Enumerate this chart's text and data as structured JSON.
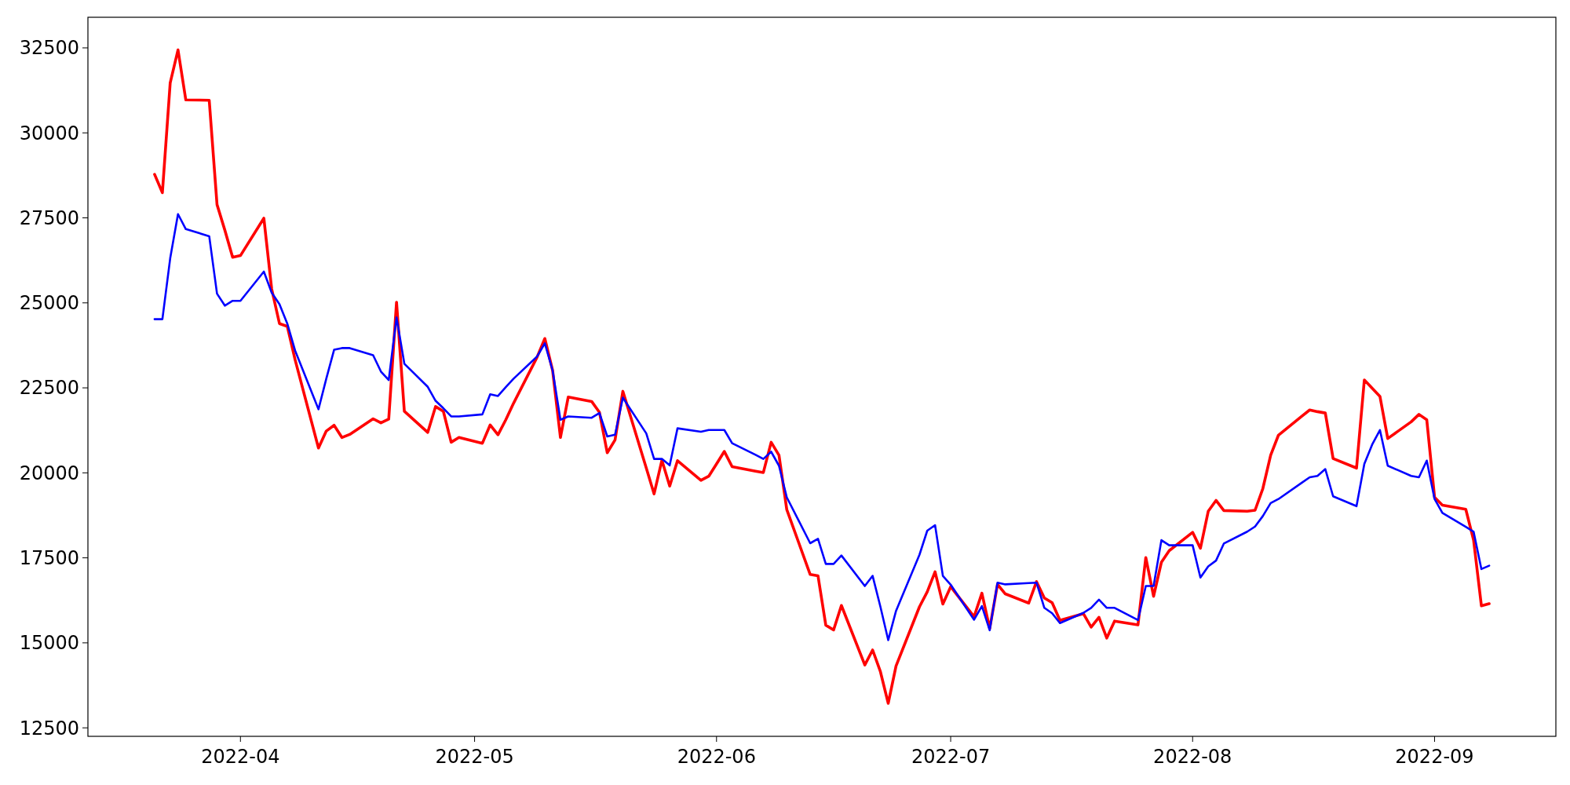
{
  "chart_data": {
    "type": "line",
    "x": [
      "2022-03-21",
      "2022-03-22",
      "2022-03-23",
      "2022-03-24",
      "2022-03-25",
      "2022-03-28",
      "2022-03-29",
      "2022-03-30",
      "2022-03-31",
      "2022-04-01",
      "2022-04-04",
      "2022-04-05",
      "2022-04-06",
      "2022-04-07",
      "2022-04-08",
      "2022-04-11",
      "2022-04-12",
      "2022-04-13",
      "2022-04-14",
      "2022-04-15",
      "2022-04-18",
      "2022-04-19",
      "2022-04-20",
      "2022-04-21",
      "2022-04-22",
      "2022-04-25",
      "2022-04-26",
      "2022-04-27",
      "2022-04-28",
      "2022-04-29",
      "2022-05-02",
      "2022-05-03",
      "2022-05-04",
      "2022-05-05",
      "2022-05-06",
      "2022-05-09",
      "2022-05-10",
      "2022-05-11",
      "2022-05-12",
      "2022-05-13",
      "2022-05-16",
      "2022-05-17",
      "2022-05-18",
      "2022-05-19",
      "2022-05-20",
      "2022-05-23",
      "2022-05-24",
      "2022-05-25",
      "2022-05-26",
      "2022-05-27",
      "2022-05-30",
      "2022-05-31",
      "2022-06-01",
      "2022-06-02",
      "2022-06-03",
      "2022-06-06",
      "2022-06-07",
      "2022-06-08",
      "2022-06-09",
      "2022-06-10",
      "2022-06-13",
      "2022-06-14",
      "2022-06-15",
      "2022-06-16",
      "2022-06-17",
      "2022-06-20",
      "2022-06-21",
      "2022-06-22",
      "2022-06-23",
      "2022-06-24",
      "2022-06-27",
      "2022-06-28",
      "2022-06-29",
      "2022-06-30",
      "2022-07-01",
      "2022-07-04",
      "2022-07-05",
      "2022-07-06",
      "2022-07-07",
      "2022-07-08",
      "2022-07-11",
      "2022-07-12",
      "2022-07-13",
      "2022-07-14",
      "2022-07-15",
      "2022-07-18",
      "2022-07-19",
      "2022-07-20",
      "2022-07-21",
      "2022-07-22",
      "2022-07-25",
      "2022-07-26",
      "2022-07-27",
      "2022-07-28",
      "2022-07-29",
      "2022-08-01",
      "2022-08-02",
      "2022-08-03",
      "2022-08-04",
      "2022-08-05",
      "2022-08-08",
      "2022-08-09",
      "2022-08-10",
      "2022-08-11",
      "2022-08-12",
      "2022-08-15",
      "2022-08-16",
      "2022-08-17",
      "2022-08-18",
      "2022-08-19",
      "2022-08-22",
      "2022-08-23",
      "2022-08-24",
      "2022-08-25",
      "2022-08-26",
      "2022-08-29",
      "2022-08-30",
      "2022-08-31",
      "2022-09-01",
      "2022-09-02",
      "2022-09-05",
      "2022-09-06",
      "2022-09-07",
      "2022-09-08"
    ],
    "series": [
      {
        "color": "#ff0000",
        "values": [
          28780,
          28240,
          31470,
          32440,
          30970,
          30960,
          27890,
          27140,
          26340,
          26390,
          27490,
          25410,
          24390,
          24310,
          23330,
          20730,
          21230,
          21400,
          21040,
          21130,
          21590,
          21470,
          21580,
          25020,
          21810,
          21190,
          21950,
          21810,
          20900,
          21040,
          20870,
          21410,
          21120,
          21560,
          22050,
          23400,
          23950,
          23010,
          21040,
          22230,
          22100,
          21780,
          20590,
          20970,
          22400,
          20140,
          19380,
          20370,
          19610,
          20360,
          19780,
          19900,
          20260,
          20630,
          20180,
          20050,
          20010,
          20900,
          20520,
          18920,
          17010,
          16970,
          15520,
          15380,
          16100,
          14350,
          14790,
          14150,
          13220,
          14320,
          16060,
          16500,
          17090,
          16140,
          16650,
          15770,
          16460,
          15420,
          16720,
          16440,
          16170,
          16800,
          16320,
          16180,
          15660,
          15860,
          15460,
          15750,
          15140,
          15640,
          15530,
          17510,
          16370,
          17370,
          17710,
          18250,
          17780,
          18870,
          19190,
          18890,
          18870,
          18900,
          19540,
          20520,
          21110,
          21670,
          21850,
          21800,
          21760,
          20420,
          20140,
          22730,
          22490,
          22250,
          21010,
          21500,
          21720,
          21560,
          19280,
          19050,
          18930,
          18020,
          16090,
          16150
        ]
      },
      {
        "color": "#0000ff",
        "values": [
          24520,
          24520,
          26310,
          27610,
          27170,
          26960,
          25270,
          24920,
          25060,
          25060,
          25920,
          25300,
          24960,
          24390,
          23600,
          21870,
          22770,
          23620,
          23670,
          23670,
          23460,
          22980,
          22730,
          24570,
          23210,
          22530,
          22120,
          21900,
          21660,
          21660,
          21720,
          22310,
          22260,
          22520,
          22770,
          23420,
          23810,
          23010,
          21560,
          21660,
          21620,
          21760,
          21070,
          21120,
          22210,
          21160,
          20410,
          20410,
          20220,
          21310,
          21210,
          21260,
          21260,
          21260,
          20870,
          20530,
          20410,
          20620,
          20210,
          19280,
          17930,
          18060,
          17320,
          17320,
          17570,
          16670,
          16970,
          16060,
          15080,
          15940,
          17590,
          18300,
          18460,
          16970,
          16710,
          15680,
          16080,
          15370,
          16770,
          16720,
          16760,
          16770,
          16030,
          15870,
          15580,
          15880,
          16030,
          16270,
          16030,
          16030,
          15670,
          16670,
          16670,
          18020,
          17870,
          17870,
          16920,
          17250,
          17420,
          17920,
          18270,
          18420,
          18730,
          19110,
          19230,
          19710,
          19870,
          19910,
          20110,
          19310,
          19020,
          20260,
          20830,
          21260,
          20210,
          19910,
          19870,
          20360,
          19230,
          18820,
          18410,
          18270,
          17170,
          17270
        ]
      }
    ],
    "xlim": [
      "2022-03-12T11:00",
      "2022-09-16T13:00"
    ],
    "ylim": [
      12250,
      33400
    ],
    "xticks": [
      "2022-04",
      "2022-05",
      "2022-06",
      "2022-07",
      "2022-08",
      "2022-09"
    ],
    "yticks": [
      12500,
      15000,
      17500,
      20000,
      22500,
      25000,
      27500,
      30000,
      32500
    ],
    "grid": false,
    "marker": "none",
    "line_style": "solid"
  }
}
